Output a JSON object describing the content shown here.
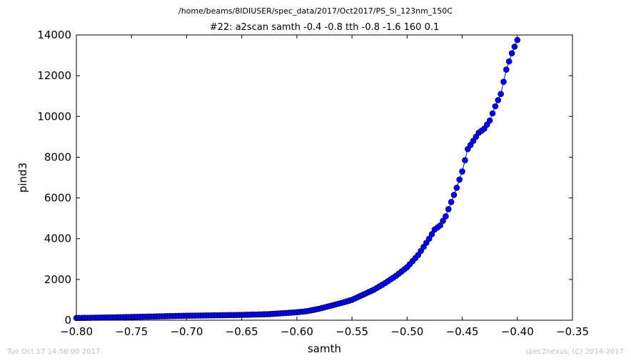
{
  "chart_data": {
    "type": "scatter",
    "suptitle": "/home/beams/8IDIUSER/spec_data/2017/Oct2017/PS_Si_123nm_150C",
    "title": "#22: a2scan  samth -0.4 -0.8  tth -0.8 -1.6  160 0.1",
    "xlabel": "samth",
    "ylabel": "pind3",
    "xlim": [
      -0.8,
      -0.35
    ],
    "ylim": [
      0,
      14000
    ],
    "xticks": [
      "−0.80",
      "−0.75",
      "−0.70",
      "−0.65",
      "−0.60",
      "−0.55",
      "−0.50",
      "−0.45",
      "−0.40",
      "−0.35"
    ],
    "yticks": [
      "0",
      "2000",
      "4000",
      "6000",
      "8000",
      "10000",
      "12000",
      "14000"
    ],
    "grid": false,
    "marker_color": "#0000ff",
    "line_color": "#0000ff",
    "series": [
      {
        "x": [
          -0.8,
          -0.775,
          -0.75,
          -0.725,
          -0.7,
          -0.675,
          -0.65,
          -0.625,
          -0.6,
          -0.59,
          -0.58,
          -0.57,
          -0.56,
          -0.55,
          -0.54,
          -0.53,
          -0.52,
          -0.51,
          -0.5,
          -0.49,
          -0.48,
          -0.475,
          -0.47,
          -0.465,
          -0.46,
          -0.455,
          -0.45,
          -0.445,
          -0.44,
          -0.435,
          -0.43,
          -0.425,
          -0.42,
          -0.415,
          -0.41,
          -0.405,
          -0.4
        ],
        "y": [
          110,
          130,
          160,
          190,
          220,
          240,
          260,
          300,
          390,
          450,
          560,
          700,
          840,
          1000,
          1250,
          1500,
          1820,
          2180,
          2600,
          3200,
          4000,
          4450,
          4650,
          5100,
          5800,
          6500,
          7300,
          8400,
          8800,
          9200,
          9400,
          9800,
          10500,
          11100,
          12300,
          13100,
          13750
        ]
      }
    ]
  },
  "footer": {
    "timestamp": "Tue Oct 17 14:56:00 2017",
    "credit": "spec2nexus, (C) 2014-2017"
  }
}
